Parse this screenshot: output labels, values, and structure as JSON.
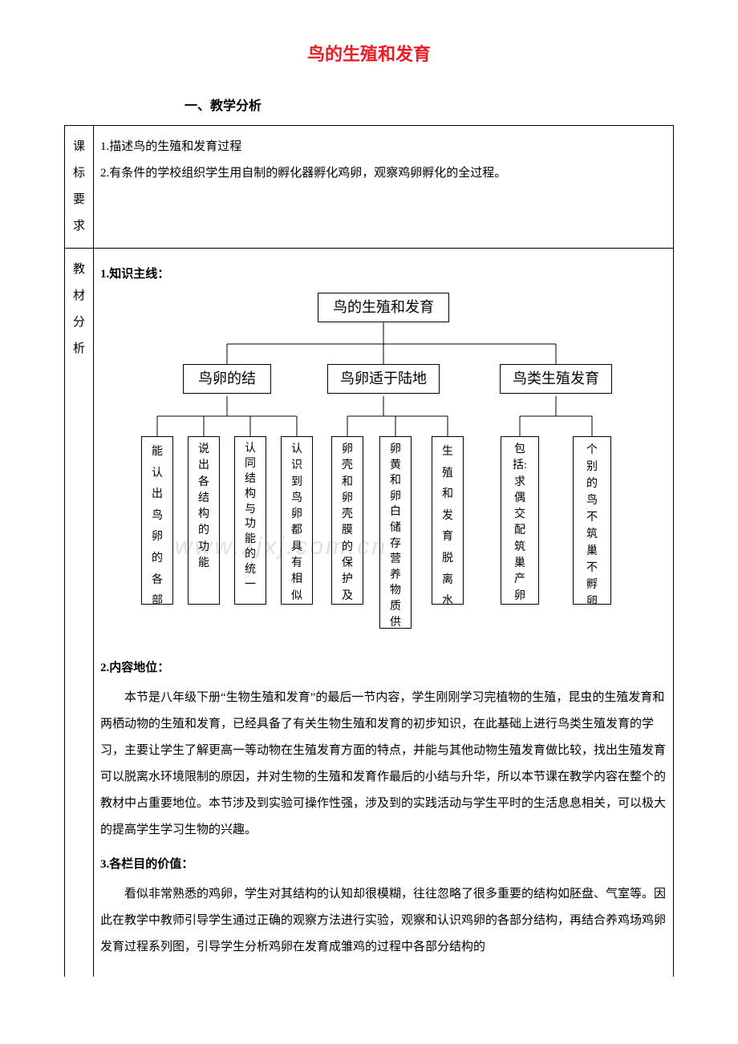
{
  "colors": {
    "title": "#ed1c24",
    "text": "#000000",
    "border": "#000000",
    "background": "#ffffff",
    "watermark": "rgba(0,0,0,0.12)"
  },
  "title": "鸟的生殖和发育",
  "section_heading": "一、教学分析",
  "row1": {
    "side_chars": [
      "课",
      "标",
      "要",
      "求"
    ],
    "lines": [
      "1.描述鸟的生殖和发育过程",
      "2.有条件的学校组织学生用自制的孵化器孵化鸡卵，观察鸡卵孵化的全过程。"
    ]
  },
  "row2": {
    "side_chars": [
      "教",
      "材",
      "分",
      "析"
    ],
    "subhead1": "1.知识主线：",
    "diagram": {
      "root": "鸟的生殖和发育",
      "mids": [
        "鸟卵的结",
        "鸟卵适于陆地",
        "鸟类生殖发育"
      ],
      "leaves": [
        [
          "能",
          "认",
          "出",
          "鸟",
          "卵",
          "的",
          "各",
          "部"
        ],
        [
          "说",
          "出",
          "各",
          "结",
          "构",
          "的",
          "功",
          "能"
        ],
        [
          "认",
          "同",
          "结",
          "构",
          "与",
          "功",
          "能",
          "的",
          "统",
          "一"
        ],
        [
          "认",
          "识",
          "到",
          "鸟",
          "卵",
          "都",
          "具",
          "有",
          "相",
          "似"
        ],
        [
          "卵",
          "壳",
          "和",
          "卵",
          "壳",
          "膜",
          "的",
          "保",
          "护",
          "及"
        ],
        [
          "卵",
          "黄",
          "和",
          "卵",
          "白",
          "储",
          "存",
          "营",
          "养",
          "物",
          "质",
          "供"
        ],
        [
          "生",
          "殖",
          "和",
          "发",
          "育",
          "脱",
          "离",
          "水"
        ],
        [
          "包",
          "括:",
          "求",
          "偶",
          "交",
          "配",
          "筑",
          "巢",
          "产",
          "卵"
        ],
        [
          "个",
          "别",
          "的",
          "鸟",
          "不",
          "筑",
          "巢",
          "不",
          "孵",
          "卵"
        ]
      ]
    },
    "subhead2": "2.内容地位：",
    "para2": "本节是八年级下册“生物生殖和发育”的最后一节内容，学生刚刚学习完植物的生殖，昆虫的生殖发育和两栖动物的生殖和发育，已经具备了有关生物生殖和发育的初步知识，在此基础上进行鸟类生殖发育的学习，主要让学生了解更高一等动物在生殖发育方面的特点，并能与其他动物生殖发育做比较，找出生殖发育可以脱离水环境限制的原因，并对生物的生殖和发育作最后的小结与升华，所以本节课在教学内容在整个的教材中占重要地位。本节涉及到实验可操作性强，涉及到的实践活动与学生平时的生活息息相关，可以极大的提高学生学习生物的兴趣。",
    "subhead3": "3.各栏目的价值：",
    "para3": "看似非常熟悉的鸡卵，学生对其结构的认知却很模糊，往往忽略了很多重要的结构如胚盘、气室等。因此在教学中教师引导学生通过正确的观察方法进行实验，观察和认识鸡卵的各部分结构，再结合养鸡场鸡卵发育过程系列图，引导学生分析鸡卵在发育成雏鸡的过程中各部分结构的",
    "watermark": "www.zjxj.com.cn"
  }
}
